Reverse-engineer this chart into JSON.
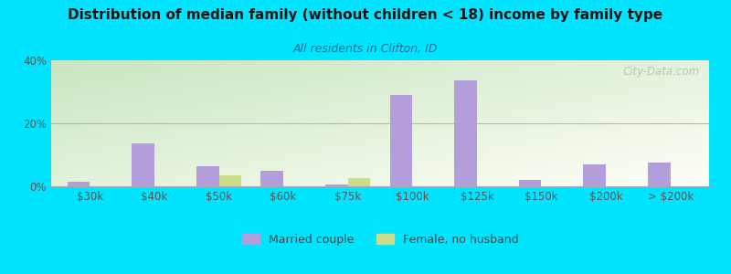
{
  "title": "Distribution of median family (without children < 18) income by family type",
  "subtitle": "All residents in Clifton, ID",
  "categories": [
    "$30k",
    "$40k",
    "$50k",
    "$60k",
    "$75k",
    "$100k",
    "$125k",
    "$150k",
    "$200k",
    "> $200k"
  ],
  "married_couple": [
    1.5,
    13.5,
    6.5,
    5.0,
    0.5,
    29.0,
    33.5,
    2.0,
    7.0,
    7.5
  ],
  "female_no_husband": [
    0.0,
    0.0,
    3.5,
    0.0,
    2.5,
    0.0,
    0.0,
    0.0,
    0.0,
    0.0
  ],
  "married_color": "#b39ddb",
  "female_color": "#cddc89",
  "background_color": "#00e5ff",
  "ylim": [
    0,
    40
  ],
  "yticks": [
    0,
    20,
    40
  ],
  "ytick_labels": [
    "0%",
    "20%",
    "40%"
  ],
  "bar_width": 0.35,
  "legend_married": "Married couple",
  "legend_female": "Female, no husband",
  "watermark": "City-Data.com",
  "grid_color": "#e8a0b0",
  "gradient_top_left": "#c8e6c0",
  "gradient_bottom_right": "#fffff8"
}
